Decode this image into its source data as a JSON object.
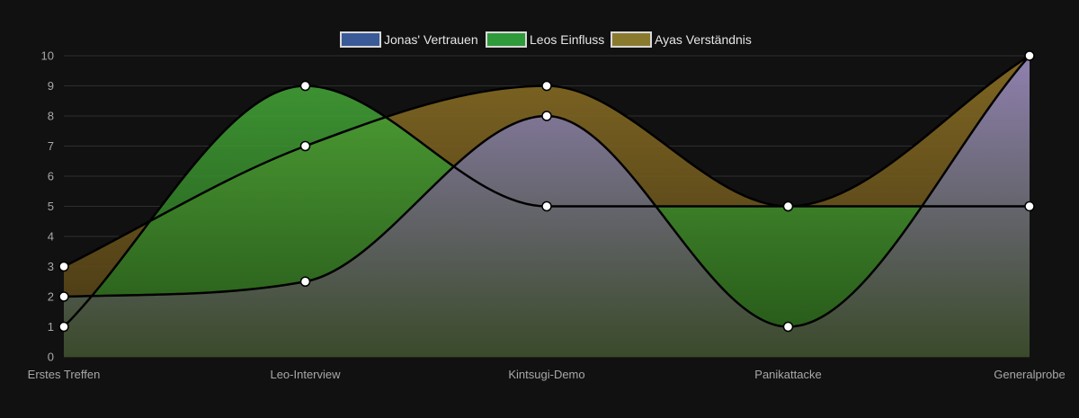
{
  "chart_data": {
    "type": "area",
    "categories": [
      "Erstes Treffen",
      "Leo-Interview",
      "Kintsugi-Demo",
      "Panikattacke",
      "Generalprobe"
    ],
    "series": [
      {
        "name": "Jonas' Vertrauen",
        "values": [
          2,
          2.5,
          8,
          1,
          10
        ],
        "legend_color": "#3a5a98"
      },
      {
        "name": "Leos Einfluss",
        "values": [
          1,
          9,
          5,
          5,
          5
        ],
        "legend_color": "#2e9a3a"
      },
      {
        "name": "Ayas Verständnis",
        "values": [
          3,
          7,
          9,
          5,
          10
        ],
        "legend_color": "#8a7a2e"
      }
    ],
    "ylim": [
      0,
      10
    ],
    "yticks": [
      "0",
      "1",
      "2",
      "3",
      "4",
      "5",
      "6",
      "7",
      "8",
      "9",
      "10"
    ],
    "grid": true,
    "legend_position": "top",
    "fill_top_color": "#9080b0",
    "fill_bottom_color": "#3a4a2a"
  }
}
